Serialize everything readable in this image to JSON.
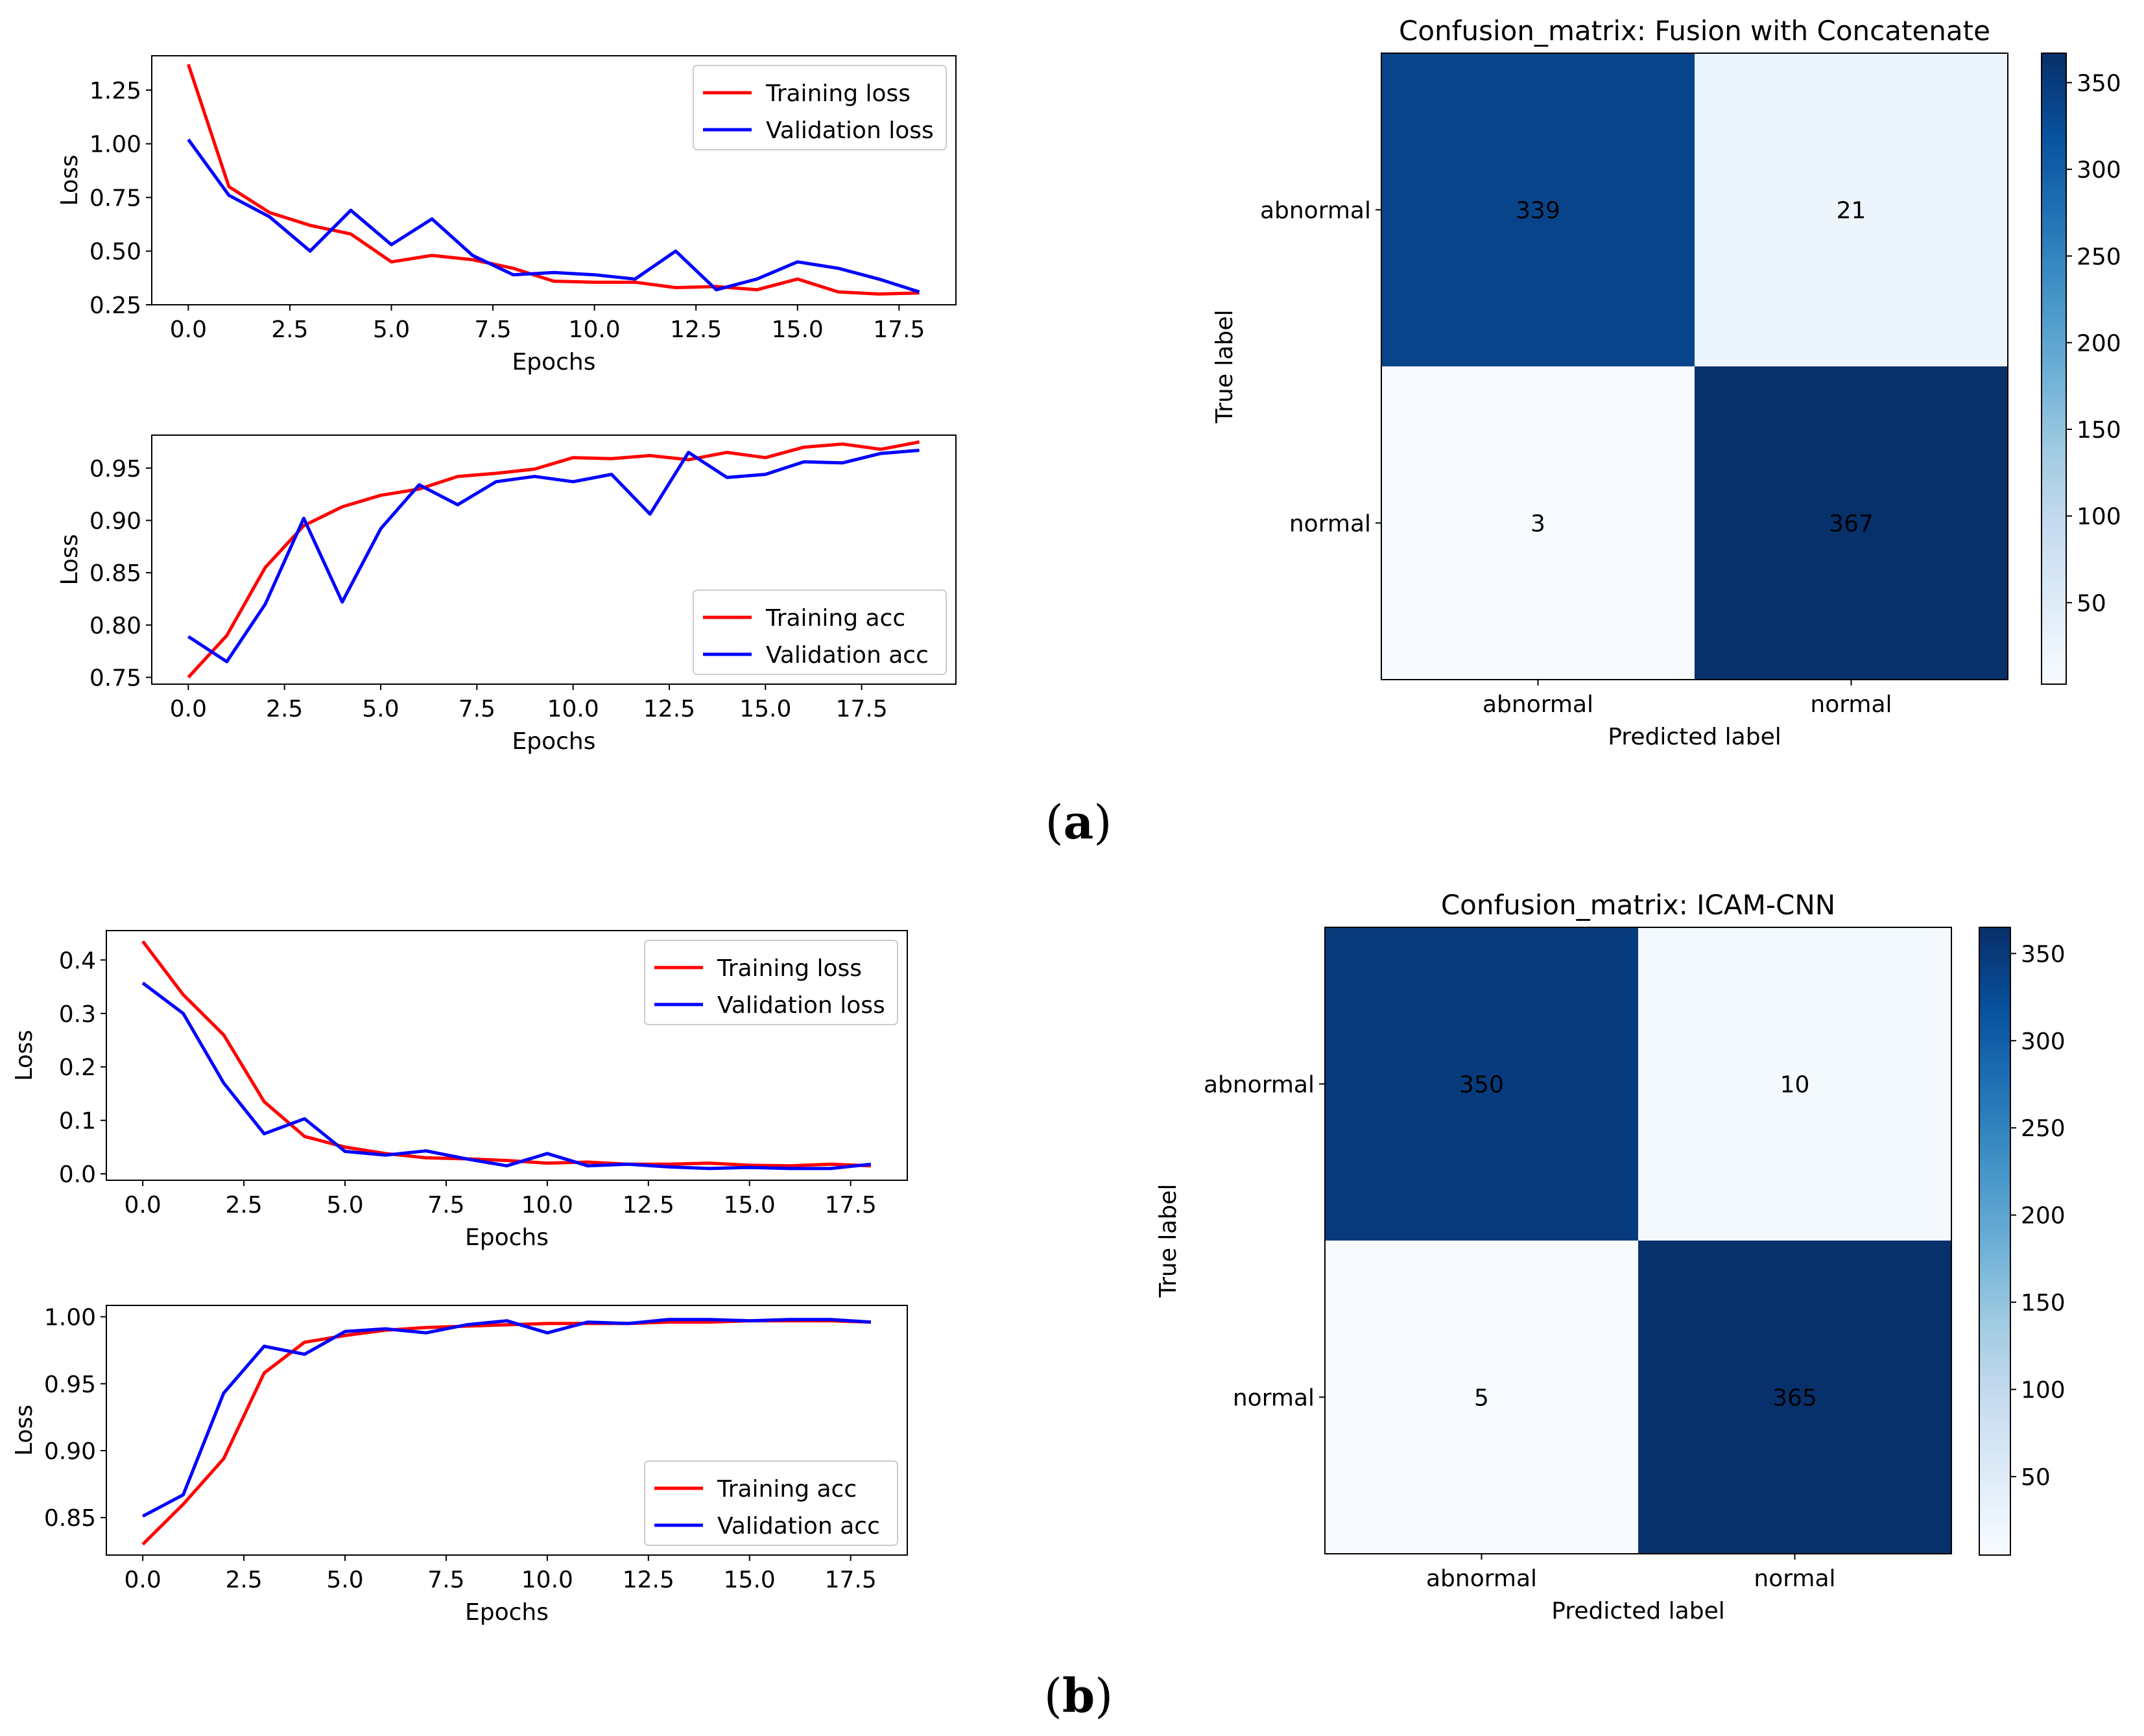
{
  "panel_labels": {
    "a": {
      "open": "(",
      "letter": "a",
      "close": ")"
    },
    "b": {
      "open": "(",
      "letter": "b",
      "close": ")"
    }
  },
  "colors": {
    "training": "#ff0000",
    "validation": "#0000ff",
    "cmap": "Blues"
  },
  "chart_data": [
    {
      "id": "a_loss",
      "type": "line",
      "panel": "a",
      "xlabel": "Epochs",
      "ylabel": "Loss",
      "xlim": [
        -0.9,
        18.9
      ],
      "ylim": [
        0.25,
        1.41
      ],
      "xticks": [
        0.0,
        2.5,
        5.0,
        7.5,
        10.0,
        12.5,
        15.0,
        17.5
      ],
      "xticklabels": [
        "0.0",
        "2.5",
        "5.0",
        "7.5",
        "10.0",
        "12.5",
        "15.0",
        "17.5"
      ],
      "yticks": [
        0.25,
        0.5,
        0.75,
        1.0,
        1.25
      ],
      "yticklabels": [
        "0.25",
        "0.50",
        "0.75",
        "1.00",
        "1.25"
      ],
      "legend_loc": "upper right",
      "series": [
        {
          "name": "Training loss",
          "color": "#ff0000",
          "x": [
            0,
            1,
            2,
            3,
            4,
            5,
            6,
            7,
            8,
            9,
            10,
            11,
            12,
            13,
            14,
            15,
            16,
            17,
            18
          ],
          "y": [
            1.37,
            0.8,
            0.68,
            0.62,
            0.58,
            0.45,
            0.48,
            0.46,
            0.42,
            0.36,
            0.355,
            0.355,
            0.33,
            0.335,
            0.32,
            0.37,
            0.31,
            0.3,
            0.305
          ]
        },
        {
          "name": "Validation loss",
          "color": "#0000ff",
          "x": [
            0,
            1,
            2,
            3,
            4,
            5,
            6,
            7,
            8,
            9,
            10,
            11,
            12,
            13,
            14,
            15,
            16,
            17,
            18
          ],
          "y": [
            1.02,
            0.76,
            0.66,
            0.5,
            0.69,
            0.53,
            0.65,
            0.48,
            0.39,
            0.4,
            0.39,
            0.37,
            0.5,
            0.32,
            0.37,
            0.45,
            0.42,
            0.37,
            0.31
          ]
        }
      ]
    },
    {
      "id": "a_acc",
      "type": "line",
      "panel": "a",
      "xlabel": "Epochs",
      "ylabel": "Loss",
      "xlim": [
        -0.95,
        19.95
      ],
      "ylim": [
        0.7435,
        0.9815
      ],
      "xticks": [
        0.0,
        2.5,
        5.0,
        7.5,
        10.0,
        12.5,
        15.0,
        17.5
      ],
      "xticklabels": [
        "0.0",
        "2.5",
        "5.0",
        "7.5",
        "10.0",
        "12.5",
        "15.0",
        "17.5"
      ],
      "yticks": [
        0.75,
        0.8,
        0.85,
        0.9,
        0.95
      ],
      "yticklabels": [
        "0.75",
        "0.80",
        "0.85",
        "0.90",
        "0.95"
      ],
      "legend_loc": "lower right",
      "series": [
        {
          "name": "Training acc",
          "color": "#ff0000",
          "x": [
            0,
            1,
            2,
            3,
            4,
            5,
            6,
            7,
            8,
            9,
            10,
            11,
            12,
            13,
            14,
            15,
            16,
            17,
            18,
            19
          ],
          "y": [
            0.75,
            0.79,
            0.855,
            0.895,
            0.913,
            0.924,
            0.93,
            0.942,
            0.945,
            0.949,
            0.96,
            0.959,
            0.962,
            0.958,
            0.965,
            0.96,
            0.97,
            0.973,
            0.968,
            0.975
          ]
        },
        {
          "name": "Validation acc",
          "color": "#0000ff",
          "x": [
            0,
            1,
            2,
            3,
            4,
            5,
            6,
            7,
            8,
            9,
            10,
            11,
            12,
            13,
            14,
            15,
            16,
            17,
            18,
            19
          ],
          "y": [
            0.789,
            0.765,
            0.82,
            0.902,
            0.822,
            0.892,
            0.934,
            0.915,
            0.937,
            0.942,
            0.937,
            0.944,
            0.906,
            0.965,
            0.941,
            0.944,
            0.956,
            0.955,
            0.964,
            0.967
          ]
        }
      ]
    },
    {
      "id": "b_loss",
      "type": "line",
      "panel": "b",
      "xlabel": "Epochs",
      "ylabel": "Loss",
      "xlim": [
        -0.9,
        18.9
      ],
      "ylim": [
        -0.012,
        0.455
      ],
      "xticks": [
        0.0,
        2.5,
        5.0,
        7.5,
        10.0,
        12.5,
        15.0,
        17.5
      ],
      "xticklabels": [
        "0.0",
        "2.5",
        "5.0",
        "7.5",
        "10.0",
        "12.5",
        "15.0",
        "17.5"
      ],
      "yticks": [
        0.0,
        0.1,
        0.2,
        0.3,
        0.4
      ],
      "yticklabels": [
        "0.0",
        "0.1",
        "0.2",
        "0.3",
        "0.4"
      ],
      "legend_loc": "upper right",
      "series": [
        {
          "name": "Training loss",
          "color": "#ff0000",
          "x": [
            0,
            1,
            2,
            3,
            4,
            5,
            6,
            7,
            8,
            9,
            10,
            11,
            12,
            13,
            14,
            15,
            16,
            17,
            18
          ],
          "y": [
            0.435,
            0.335,
            0.26,
            0.135,
            0.07,
            0.05,
            0.038,
            0.03,
            0.028,
            0.025,
            0.02,
            0.022,
            0.018,
            0.018,
            0.02,
            0.016,
            0.015,
            0.018,
            0.015
          ]
        },
        {
          "name": "Validation loss",
          "color": "#0000ff",
          "x": [
            0,
            1,
            2,
            3,
            4,
            5,
            6,
            7,
            8,
            9,
            10,
            11,
            12,
            13,
            14,
            15,
            16,
            17,
            18
          ],
          "y": [
            0.357,
            0.3,
            0.17,
            0.075,
            0.103,
            0.042,
            0.035,
            0.043,
            0.028,
            0.015,
            0.038,
            0.015,
            0.018,
            0.013,
            0.01,
            0.012,
            0.01,
            0.01,
            0.018
          ]
        }
      ]
    },
    {
      "id": "b_acc",
      "type": "line",
      "panel": "b",
      "xlabel": "Epochs",
      "ylabel": "Loss",
      "xlim": [
        -0.9,
        18.9
      ],
      "ylim": [
        0.822,
        1.0085
      ],
      "xticks": [
        0.0,
        2.5,
        5.0,
        7.5,
        10.0,
        12.5,
        15.0,
        17.5
      ],
      "xticklabels": [
        "0.0",
        "2.5",
        "5.0",
        "7.5",
        "10.0",
        "12.5",
        "15.0",
        "17.5"
      ],
      "yticks": [
        0.85,
        0.9,
        0.95,
        1.0
      ],
      "yticklabels": [
        "0.85",
        "0.90",
        "0.95",
        "1.00"
      ],
      "legend_loc": "lower right",
      "series": [
        {
          "name": "Training acc",
          "color": "#ff0000",
          "x": [
            0,
            1,
            2,
            3,
            4,
            5,
            6,
            7,
            8,
            9,
            10,
            11,
            12,
            13,
            14,
            15,
            16,
            17,
            18
          ],
          "y": [
            0.83,
            0.86,
            0.894,
            0.958,
            0.981,
            0.986,
            0.99,
            0.992,
            0.993,
            0.994,
            0.995,
            0.995,
            0.995,
            0.996,
            0.996,
            0.997,
            0.997,
            0.997,
            0.996
          ]
        },
        {
          "name": "Validation acc",
          "color": "#0000ff",
          "x": [
            0,
            1,
            2,
            3,
            4,
            5,
            6,
            7,
            8,
            9,
            10,
            11,
            12,
            13,
            14,
            15,
            16,
            17,
            18
          ],
          "y": [
            0.851,
            0.867,
            0.943,
            0.978,
            0.972,
            0.989,
            0.991,
            0.988,
            0.994,
            0.997,
            0.988,
            0.996,
            0.995,
            0.998,
            0.998,
            0.997,
            0.998,
            0.998,
            0.996
          ]
        }
      ]
    },
    {
      "id": "a_cm",
      "type": "heatmap",
      "panel": "a",
      "title": "Confusion_matrix: Fusion with Concatenate",
      "xlabel": "Predicted label",
      "ylabel": "True label",
      "labels": [
        "abnormal",
        "normal"
      ],
      "values": [
        [
          339,
          21
        ],
        [
          3,
          367
        ]
      ],
      "colorbar_range": [
        3,
        367
      ],
      "colorbar_ticks": [
        50,
        100,
        150,
        200,
        250,
        300,
        350
      ],
      "colorbar_ticklabels": [
        "50",
        "100",
        "150",
        "200",
        "250",
        "300",
        "350"
      ]
    },
    {
      "id": "b_cm",
      "type": "heatmap",
      "panel": "b",
      "title": "Confusion_matrix: ICAM-CNN",
      "xlabel": "Predicted label",
      "ylabel": "True label",
      "labels": [
        "abnormal",
        "normal"
      ],
      "values": [
        [
          350,
          10
        ],
        [
          5,
          365
        ]
      ],
      "colorbar_range": [
        5,
        365
      ],
      "colorbar_ticks": [
        50,
        100,
        150,
        200,
        250,
        300,
        350
      ],
      "colorbar_ticklabels": [
        "50",
        "100",
        "150",
        "200",
        "250",
        "300",
        "350"
      ]
    }
  ]
}
